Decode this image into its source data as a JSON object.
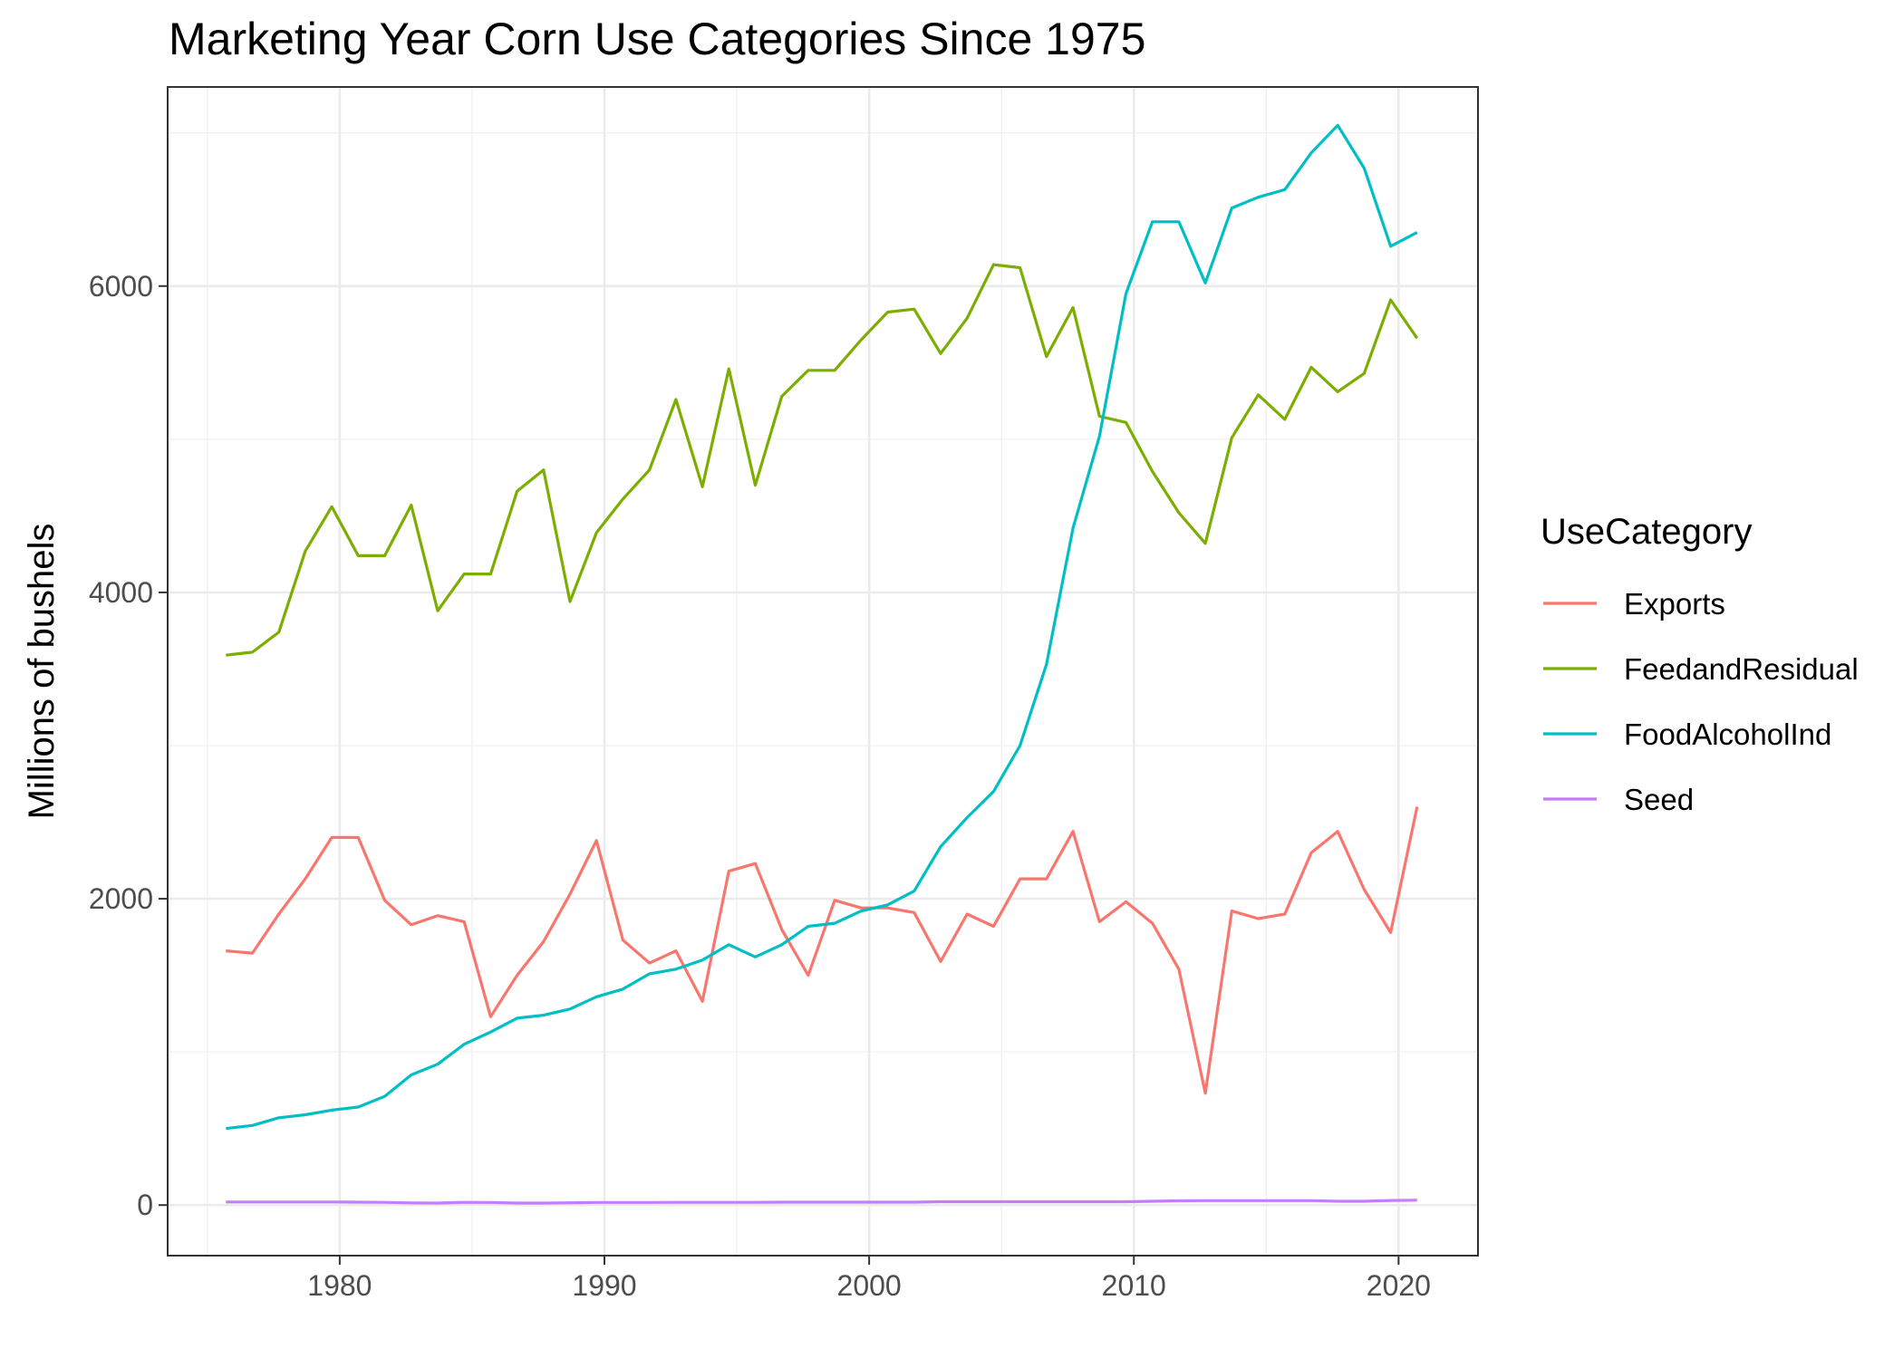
{
  "chart_data": {
    "type": "line",
    "title": "Marketing Year Corn Use Categories Since 1975",
    "xlabel": "",
    "ylabel": "Millions of bushels",
    "xlim": [
      1973.5,
      2023.0
    ],
    "ylim": [
      -330,
      7300
    ],
    "xticks": [
      1980,
      1990,
      2000,
      2010,
      2020
    ],
    "yticks": [
      0,
      2000,
      4000,
      6000
    ],
    "grid": true,
    "legend": {
      "title": "UseCategory",
      "position": "right"
    },
    "x": [
      1975.7,
      1976.7,
      1977.7,
      1978.7,
      1979.7,
      1980.7,
      1981.7,
      1982.7,
      1983.7,
      1984.7,
      1985.7,
      1986.7,
      1987.7,
      1988.7,
      1989.7,
      1990.7,
      1991.7,
      1992.7,
      1993.7,
      1994.7,
      1995.7,
      1996.7,
      1997.7,
      1998.7,
      1999.7,
      2000.7,
      2001.7,
      2002.7,
      2003.7,
      2004.7,
      2005.7,
      2006.7,
      2007.7,
      2008.7,
      2009.7,
      2010.7,
      2011.7,
      2012.7,
      2013.7,
      2014.7,
      2015.7,
      2016.7,
      2017.7,
      2018.7,
      2019.7,
      2020.7
    ],
    "series": [
      {
        "name": "Exports",
        "color": "#F8766D",
        "values": [
          1660,
          1645,
          1900,
          2130,
          2400,
          2400,
          1990,
          1830,
          1890,
          1850,
          1230,
          1500,
          1720,
          2030,
          2380,
          1730,
          1580,
          1660,
          1330,
          2180,
          2230,
          1800,
          1500,
          1990,
          1940,
          1940,
          1910,
          1590,
          1900,
          1820,
          2130,
          2130,
          2440,
          1850,
          1980,
          1840,
          1540,
          730,
          1920,
          1870,
          1900,
          2300,
          2440,
          2060,
          1780,
          2600
        ]
      },
      {
        "name": "FeedandResidual",
        "color": "#7CAE00",
        "values": [
          3590,
          3610,
          3740,
          4270,
          4560,
          4240,
          4240,
          4570,
          3880,
          4120,
          4120,
          4660,
          4800,
          3940,
          4390,
          4610,
          4800,
          5260,
          4690,
          5460,
          4700,
          5280,
          5450,
          5450,
          5650,
          5830,
          5850,
          5560,
          5790,
          6140,
          6120,
          5540,
          5860,
          5150,
          5110,
          4790,
          4520,
          4320,
          5010,
          5290,
          5130,
          5470,
          5310,
          5430,
          5910,
          5660
        ]
      },
      {
        "name": "FoodAlcoholInd",
        "color": "#00BFC4",
        "values": [
          500,
          520,
          570,
          590,
          620,
          640,
          710,
          850,
          920,
          1050,
          1130,
          1220,
          1240,
          1280,
          1360,
          1410,
          1510,
          1540,
          1600,
          1700,
          1620,
          1700,
          1820,
          1840,
          1920,
          1960,
          2050,
          2340,
          2530,
          2700,
          3000,
          3530,
          4420,
          5020,
          5950,
          6420,
          6420,
          6020,
          6510,
          6580,
          6630,
          6870,
          7050,
          6770,
          6260,
          6350
        ]
      },
      {
        "name": "Seed",
        "color": "#C77CFF",
        "values": [
          20,
          20,
          20,
          20,
          20,
          19,
          18,
          14,
          13,
          18,
          17,
          13,
          13,
          15,
          17,
          17,
          17,
          18,
          18,
          18,
          18,
          19,
          19,
          19,
          19,
          19,
          19,
          22,
          22,
          22,
          22,
          22,
          22,
          22,
          22,
          25,
          28,
          29,
          29,
          29,
          29,
          29,
          25,
          25,
          30,
          32
        ]
      }
    ]
  }
}
